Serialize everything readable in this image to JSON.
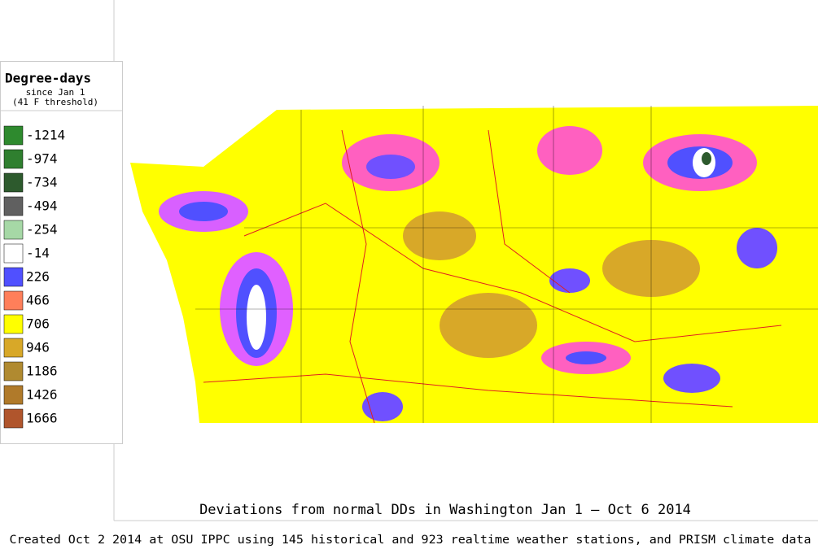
{
  "legend": {
    "title": "Degree-days",
    "subtitle": "since Jan 1",
    "note": "(41 F threshold)",
    "items": [
      {
        "value": -1214,
        "color": "#2e8a2e"
      },
      {
        "value": -974,
        "color": "#2f7f2f"
      },
      {
        "value": -734,
        "color": "#2d5a2d"
      },
      {
        "value": -494,
        "color": "#606060"
      },
      {
        "value": -254,
        "color": "#a6d8a6"
      },
      {
        "value": -14,
        "color": "#ffffff"
      },
      {
        "value": 226,
        "color": "#5050ff"
      },
      {
        "value": 466,
        "color": "#ff7f5a"
      },
      {
        "value": 706,
        "color": "#ffff00"
      },
      {
        "value": 946,
        "color": "#d8a828"
      },
      {
        "value": 1186,
        "color": "#b08a30"
      },
      {
        "value": 1426,
        "color": "#b07a2a"
      },
      {
        "value": 1666,
        "color": "#b0552c"
      }
    ]
  },
  "map": {
    "title": "Deviations from normal DDs in Washington  Jan 1 – Oct 6 2014"
  },
  "footer": "Created Oct 2 2014 at OSU IPPC using 145 historical and 923 realtime weather stations, and PRISM climate data"
}
